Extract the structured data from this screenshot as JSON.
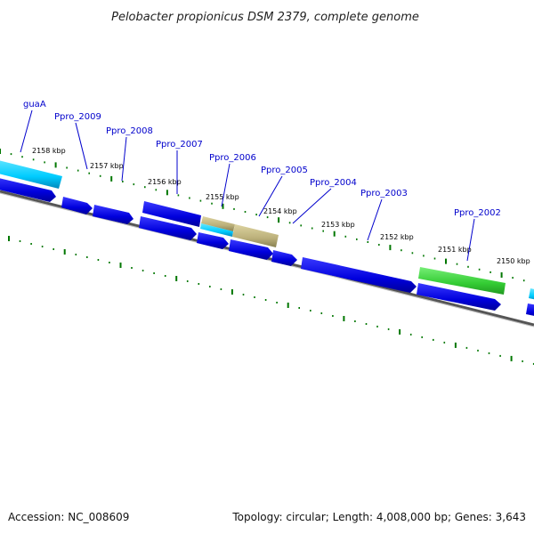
{
  "title": "Pelobacter propionicus DSM 2379, complete genome",
  "footer": {
    "accession": "Accession: NC_008609",
    "summary": "Topology: circular; Length: 4,008,000 bp; Genes: 3,643"
  },
  "scale_labels": [
    "2158 kbp",
    "2157 kbp",
    "2156 kbp",
    "2155 kbp",
    "2154 kbp",
    "2153 kbp",
    "2152 kbp",
    "2151 kbp",
    "2150 kbp"
  ],
  "gene_labels": [
    "guaA",
    "Ppro_2009",
    "Ppro_2008",
    "Ppro_2007",
    "Ppro_2006",
    "Ppro_2005",
    "Ppro_2004",
    "Ppro_2003",
    "Ppro_2002"
  ],
  "colors": {
    "cds": "#0000dd",
    "cyan_feature": "#00ccff",
    "tan_feature": "#bbb07a",
    "green_feature": "#33cc33",
    "backbone": "#777777",
    "ticks": "#007700",
    "label_text": "#0000cc",
    "leader_line": "#0000cc"
  }
}
